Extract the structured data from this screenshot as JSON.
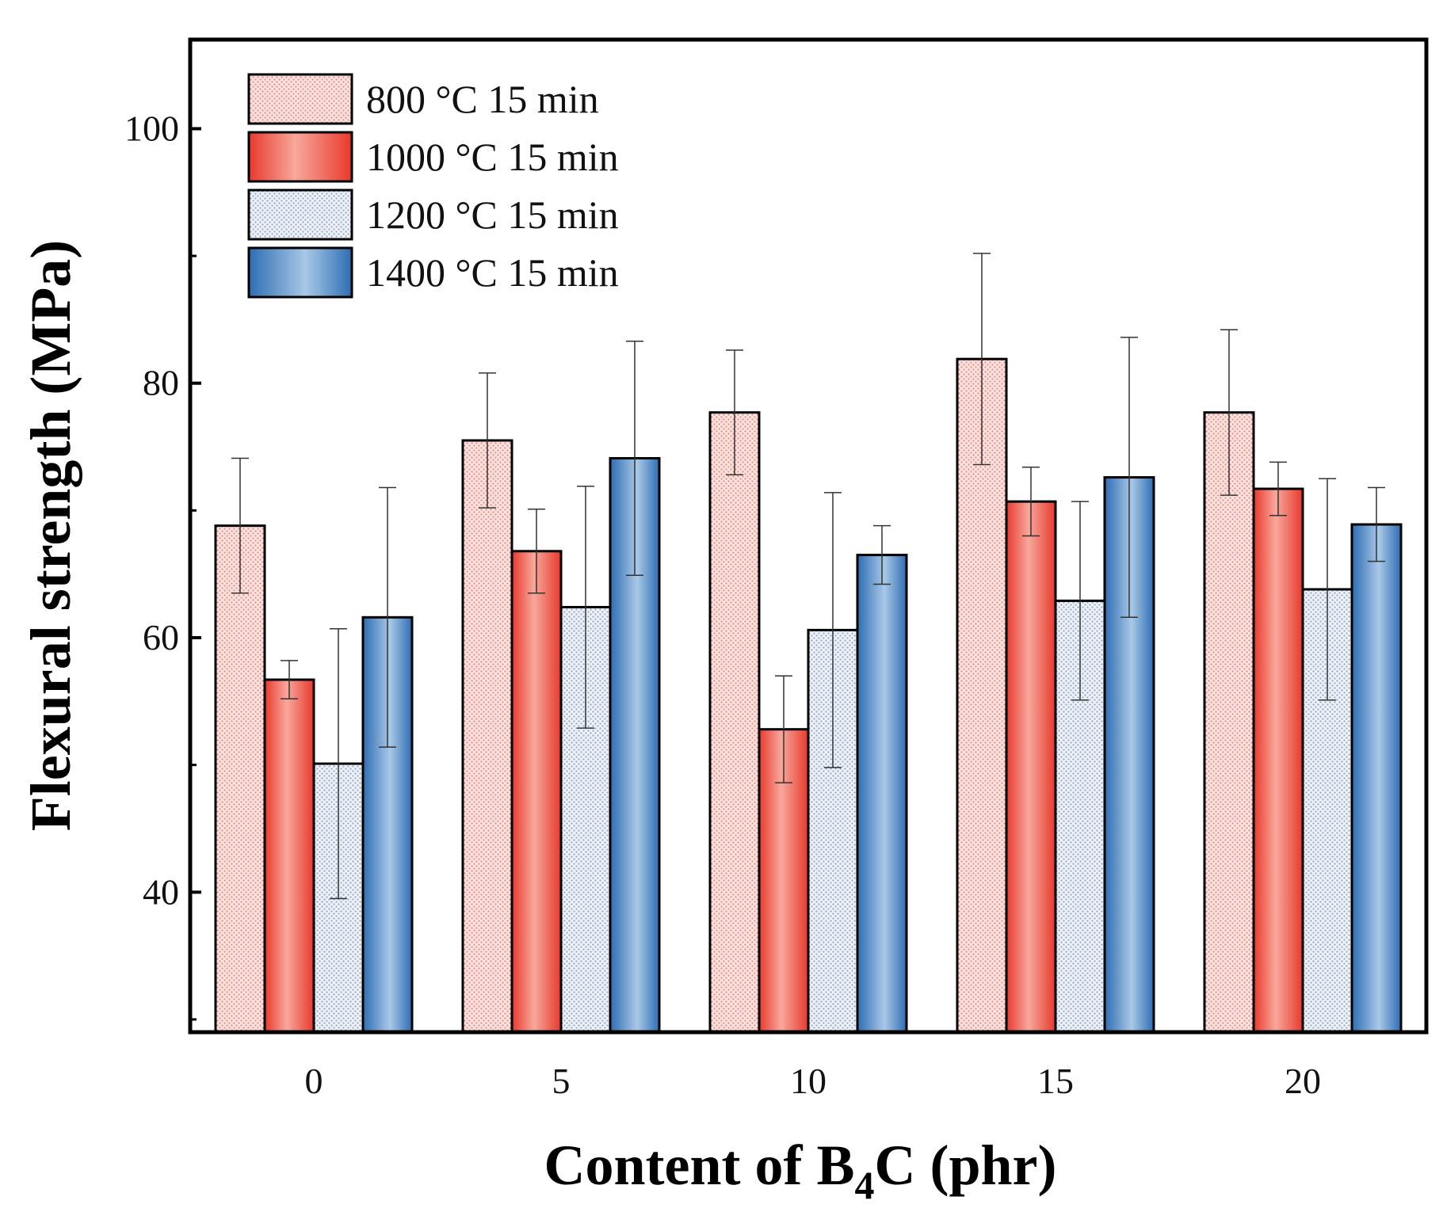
{
  "chart_data": {
    "type": "bar",
    "title": "",
    "xlabel_main": "Content of B",
    "xlabel_sub": "4",
    "xlabel_tail": "C (phr)",
    "ylabel": "Flexural strength (MPa)",
    "ylim": [
      29,
      107
    ],
    "yticks": [
      40,
      60,
      80,
      100
    ],
    "yticks_minor": [
      30,
      50,
      70,
      90
    ],
    "categories": [
      "0",
      "5",
      "10",
      "15",
      "20"
    ],
    "legend_position": "top-left",
    "series": [
      {
        "name": "800 °C 15 min",
        "color": "#f7c9c4",
        "pattern": "dots-red",
        "values": [
          68.8,
          75.5,
          77.7,
          81.9,
          77.7
        ],
        "errors": [
          5.3,
          5.3,
          4.9,
          8.3,
          6.5
        ]
      },
      {
        "name": "1000 °C 15 min",
        "color": "#ee5a4f",
        "pattern": "gradient-red",
        "values": [
          56.7,
          66.8,
          52.8,
          70.7,
          71.7
        ],
        "errors": [
          1.5,
          3.3,
          4.2,
          2.7,
          2.1
        ]
      },
      {
        "name": "1200 °C 15 min",
        "color": "#d4dde8",
        "pattern": "dots-blue",
        "values": [
          50.1,
          62.4,
          60.6,
          62.9,
          63.8
        ],
        "errors": [
          10.6,
          9.5,
          10.8,
          7.8,
          8.7
        ]
      },
      {
        "name": "1400 °C 15 min",
        "color": "#3f7fc0",
        "pattern": "gradient-blue",
        "values": [
          61.6,
          74.1,
          66.5,
          72.6,
          68.9
        ],
        "errors": [
          10.2,
          9.2,
          2.3,
          11.0,
          2.9
        ]
      }
    ]
  }
}
